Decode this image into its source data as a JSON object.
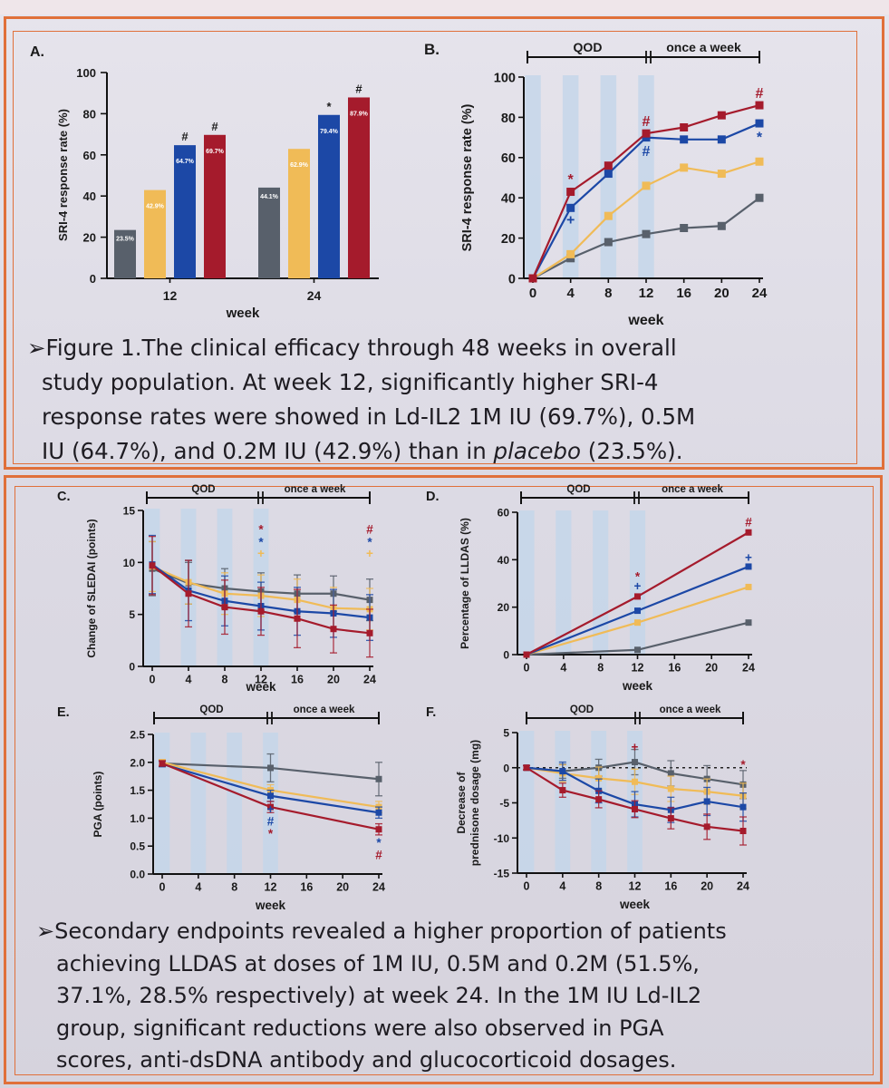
{
  "colors": {
    "placebo": "#58606b",
    "dose_0_2M": "#f0bb57",
    "dose_0_5M": "#1c48a6",
    "dose_1M": "#a51b2c",
    "stripe": "#c3d6ea",
    "frame": "#e0703a"
  },
  "charts": {
    "A": {
      "label": "A.",
      "ylabel": "SRI-4 response rate (%)",
      "xlabel": "week",
      "yticks": [
        "0",
        "20",
        "40",
        "60",
        "80",
        "100"
      ],
      "groups": [
        "12",
        "24"
      ]
    },
    "B": {
      "label": "B.",
      "ylabel": "SRI-4 response rate (%)",
      "xlabel": "week",
      "xticks": [
        "0",
        "4",
        "8",
        "12",
        "16",
        "20",
        "24"
      ],
      "yticks": [
        "0",
        "20",
        "40",
        "60",
        "80",
        "100"
      ],
      "period1": "QOD",
      "period2": "once a week"
    },
    "C": {
      "label": "C.",
      "ylabel": "Change of SLEDAI (points)",
      "xlabel": "week",
      "xticks": [
        "0",
        "4",
        "8",
        "12",
        "16",
        "20",
        "24"
      ],
      "yticks": [
        "0",
        "5",
        "10",
        "15"
      ],
      "period1": "QOD",
      "period2": "once a week"
    },
    "D": {
      "label": "D.",
      "ylabel": "Percentage of LLDAS (%)",
      "xlabel": "week",
      "xticks": [
        "0",
        "4",
        "8",
        "12",
        "16",
        "20",
        "24"
      ],
      "yticks": [
        "0",
        "20",
        "40",
        "60"
      ],
      "period1": "QOD",
      "period2": "once a week"
    },
    "E": {
      "label": "E.",
      "ylabel": "PGA (points)",
      "xlabel": "week",
      "xticks": [
        "0",
        "4",
        "8",
        "12",
        "16",
        "20",
        "24"
      ],
      "yticks": [
        "0.0",
        "0.5",
        "1.0",
        "1.5",
        "2.0",
        "2.5"
      ],
      "period1": "QOD",
      "period2": "once a week"
    },
    "F": {
      "label": "F.",
      "ylabel1": "Decrease of",
      "ylabel2": "prednisone dosage (mg)",
      "xlabel": "week",
      "xticks": [
        "0",
        "4",
        "8",
        "12",
        "16",
        "20",
        "24"
      ],
      "yticks": [
        "-15",
        "-10",
        "-5",
        "0",
        "5"
      ],
      "period1": "QOD",
      "period2": "once a week"
    }
  },
  "chart_data": [
    {
      "id": "A",
      "type": "bar",
      "title": "",
      "xlabel": "week",
      "ylabel": "SRI-4 response rate (%)",
      "ylim": [
        0,
        100
      ],
      "categories": [
        "12",
        "24"
      ],
      "series": [
        {
          "name": "placebo",
          "color": "#58606b",
          "values": [
            23.5,
            44.1
          ],
          "labels": [
            "23.5%",
            "44.1%"
          ],
          "marks": [
            "",
            ""
          ]
        },
        {
          "name": "0.2M IU",
          "color": "#f0bb57",
          "values": [
            42.9,
            62.9
          ],
          "labels": [
            "42.9%",
            "62.9%"
          ],
          "marks": [
            "",
            ""
          ]
        },
        {
          "name": "0.5M IU",
          "color": "#1c48a6",
          "values": [
            64.7,
            79.4
          ],
          "labels": [
            "64.7%",
            "79.4%"
          ],
          "marks": [
            "#",
            "*"
          ]
        },
        {
          "name": "1M IU",
          "color": "#a51b2c",
          "values": [
            69.7,
            87.9
          ],
          "labels": [
            "69.7%",
            "87.9%"
          ],
          "marks": [
            "#",
            "#"
          ]
        }
      ]
    },
    {
      "id": "B",
      "type": "line",
      "xlabel": "week",
      "ylabel": "SRI-4 response rate (%)",
      "xlim": [
        0,
        24
      ],
      "ylim": [
        0,
        100
      ],
      "x": [
        0,
        4,
        8,
        12,
        16,
        20,
        24
      ],
      "series": [
        {
          "name": "placebo",
          "color": "#58606b",
          "values": [
            0,
            10,
            18,
            22,
            25,
            26,
            40
          ]
        },
        {
          "name": "0.2M IU",
          "color": "#f0bb57",
          "values": [
            0,
            12,
            31,
            46,
            55,
            52,
            58
          ]
        },
        {
          "name": "0.5M IU",
          "color": "#1c48a6",
          "values": [
            0,
            35,
            52,
            70,
            69,
            69,
            77
          ]
        },
        {
          "name": "1M IU",
          "color": "#a51b2c",
          "values": [
            0,
            43,
            56,
            72,
            75,
            81,
            86
          ]
        }
      ],
      "annotations": [
        {
          "x": 4,
          "y": 49,
          "text": "*",
          "color": "#a51b2c"
        },
        {
          "x": 4,
          "y": 29,
          "text": "+",
          "color": "#1c48a6"
        },
        {
          "x": 12,
          "y": 78,
          "text": "#",
          "color": "#a51b2c"
        },
        {
          "x": 12,
          "y": 63,
          "text": "#",
          "color": "#1c48a6"
        },
        {
          "x": 24,
          "y": 92,
          "text": "#",
          "color": "#a51b2c"
        },
        {
          "x": 24,
          "y": 70,
          "text": "*",
          "color": "#1c48a6"
        }
      ]
    },
    {
      "id": "C",
      "type": "line",
      "xlabel": "week",
      "ylabel": "Change of SLEDAI (points)",
      "xlim": [
        0,
        24
      ],
      "ylim": [
        0,
        15
      ],
      "x": [
        0,
        4,
        8,
        12,
        16,
        20,
        24
      ],
      "series": [
        {
          "name": "placebo",
          "color": "#58606b",
          "values": [
            9.4,
            8.0,
            7.5,
            7.2,
            7.0,
            7.0,
            6.4
          ],
          "errors": [
            2.6,
            2.0,
            1.9,
            1.8,
            1.8,
            1.7,
            2.0
          ]
        },
        {
          "name": "0.2M IU",
          "color": "#f0bb57",
          "values": [
            9.6,
            8.1,
            7.0,
            6.8,
            6.4,
            5.6,
            5.5
          ],
          "errors": [
            2.4,
            2.1,
            2.0,
            2.0,
            2.0,
            2.0,
            2.0
          ]
        },
        {
          "name": "0.5M IU",
          "color": "#1c48a6",
          "values": [
            9.8,
            7.3,
            6.3,
            5.8,
            5.3,
            5.1,
            4.7
          ],
          "errors": [
            2.8,
            2.9,
            2.4,
            2.3,
            2.3,
            2.3,
            2.2
          ]
        },
        {
          "name": "1M IU",
          "color": "#a51b2c",
          "values": [
            9.7,
            7.0,
            5.7,
            5.3,
            4.6,
            3.6,
            3.2
          ],
          "errors": [
            2.8,
            3.2,
            2.6,
            2.3,
            2.8,
            2.3,
            2.3
          ]
        }
      ],
      "annotations": [
        {
          "x": 12,
          "y": 13.2,
          "text": "*",
          "color": "#a51b2c"
        },
        {
          "x": 12,
          "y": 12.0,
          "text": "*",
          "color": "#1c48a6"
        },
        {
          "x": 12,
          "y": 10.9,
          "text": "+",
          "color": "#f0bb57"
        },
        {
          "x": 24,
          "y": 13.2,
          "text": "#",
          "color": "#a51b2c"
        },
        {
          "x": 24,
          "y": 12.0,
          "text": "*",
          "color": "#1c48a6"
        },
        {
          "x": 24,
          "y": 10.9,
          "text": "+",
          "color": "#f0bb57"
        }
      ]
    },
    {
      "id": "D",
      "type": "line",
      "xlabel": "week",
      "ylabel": "Percentage of LLDAS (%)",
      "xlim": [
        0,
        24
      ],
      "ylim": [
        0,
        60
      ],
      "x": [
        0,
        12,
        24
      ],
      "series": [
        {
          "name": "placebo",
          "color": "#58606b",
          "values": [
            0,
            2,
            13.5
          ]
        },
        {
          "name": "0.2M IU",
          "color": "#f0bb57",
          "values": [
            0,
            13.5,
            28.5
          ]
        },
        {
          "name": "0.5M IU",
          "color": "#1c48a6",
          "values": [
            0,
            18.5,
            37.1
          ]
        },
        {
          "name": "1M IU",
          "color": "#a51b2c",
          "values": [
            0,
            24.5,
            51.5
          ]
        }
      ],
      "annotations": [
        {
          "x": 12,
          "y": 33,
          "text": "*",
          "color": "#a51b2c"
        },
        {
          "x": 12,
          "y": 29,
          "text": "+",
          "color": "#1c48a6"
        },
        {
          "x": 24,
          "y": 56,
          "text": "#",
          "color": "#a51b2c"
        },
        {
          "x": 24,
          "y": 41,
          "text": "+",
          "color": "#1c48a6"
        }
      ]
    },
    {
      "id": "E",
      "type": "line",
      "xlabel": "week",
      "ylabel": "PGA (points)",
      "xlim": [
        0,
        24
      ],
      "ylim": [
        0,
        2.5
      ],
      "x": [
        0,
        12,
        24
      ],
      "series": [
        {
          "name": "placebo",
          "color": "#58606b",
          "values": [
            1.98,
            1.9,
            1.7
          ],
          "errors": [
            0.05,
            0.25,
            0.3
          ]
        },
        {
          "name": "0.2M IU",
          "color": "#f0bb57",
          "values": [
            2.0,
            1.5,
            1.2
          ],
          "errors": [
            0.05,
            0.1,
            0.1
          ]
        },
        {
          "name": "0.5M IU",
          "color": "#1c48a6",
          "values": [
            1.97,
            1.4,
            1.1
          ],
          "errors": [
            0.05,
            0.1,
            0.1
          ]
        },
        {
          "name": "1M IU",
          "color": "#a51b2c",
          "values": [
            1.98,
            1.2,
            0.8
          ],
          "errors": [
            0.05,
            0.1,
            0.1
          ]
        }
      ],
      "annotations": [
        {
          "x": 12,
          "y": 1.17,
          "text": "+",
          "color": "#1c48a6"
        },
        {
          "x": 12,
          "y": 0.95,
          "text": "#",
          "color": "#1c48a6"
        },
        {
          "x": 12,
          "y": 0.73,
          "text": "*",
          "color": "#a51b2c"
        },
        {
          "x": 24,
          "y": 0.57,
          "text": "*",
          "color": "#1c48a6"
        },
        {
          "x": 24,
          "y": 0.35,
          "text": "#",
          "color": "#a51b2c"
        }
      ]
    },
    {
      "id": "F",
      "type": "line",
      "xlabel": "week",
      "ylabel": "Decrease of prednisone dosage (mg)",
      "xlim": [
        0,
        24
      ],
      "ylim": [
        -15,
        5
      ],
      "x": [
        0,
        4,
        8,
        12,
        16,
        20,
        24
      ],
      "series": [
        {
          "name": "placebo",
          "color": "#58606b",
          "values": [
            0,
            -0.5,
            0,
            0.8,
            -0.8,
            -1.6,
            -2.4
          ],
          "errors": [
            0.3,
            1.0,
            1.2,
            1.8,
            1.8,
            1.9,
            2.0
          ]
        },
        {
          "name": "0.2M IU",
          "color": "#f0bb57",
          "values": [
            0,
            -0.8,
            -1.5,
            -2.0,
            -3.0,
            -3.4,
            -4.0
          ],
          "errors": [
            0.3,
            1.2,
            1.6,
            1.8,
            1.8,
            1.8,
            1.8
          ]
        },
        {
          "name": "0.5M IU",
          "color": "#1c48a6",
          "values": [
            0,
            -0.5,
            -3.3,
            -5.2,
            -6.0,
            -4.8,
            -5.6
          ],
          "errors": [
            0.3,
            1.3,
            1.7,
            1.8,
            1.8,
            2.0,
            2.0
          ]
        },
        {
          "name": "1M IU",
          "color": "#a51b2c",
          "values": [
            0,
            -3.2,
            -4.5,
            -5.9,
            -7.2,
            -8.4,
            -9.0
          ],
          "errors": [
            0.3,
            1.0,
            1.2,
            1.2,
            1.5,
            1.8,
            2.0
          ]
        }
      ],
      "annotations": [
        {
          "x": 12,
          "y": 3.0,
          "text": "+",
          "color": "#a51b2c"
        },
        {
          "x": 24,
          "y": 0.5,
          "text": "*",
          "color": "#a51b2c"
        }
      ]
    }
  ],
  "caption1": {
    "line1": "➢Figure 1.The clinical efficacy through 48 weeks in overall",
    "line2": "study population. At week 12, significantly higher SRI-4",
    "line3": "response rates were showed in Ld-IL2 1M IU (69.7%), 0.5M",
    "line4a": "IU (64.7%), and 0.2M IU (42.9%) than in ",
    "line4b": "placebo",
    "line4c": " (23.5%)."
  },
  "caption2": {
    "line1": "➢Secondary endpoints revealed a higher proportion of patients",
    "line2": "achieving LLDAS at doses of 1M IU, 0.5M and 0.2M (51.5%,",
    "line3": "37.1%, 28.5% respectively) at week 24. In the 1M IU Ld-IL2",
    "line4": "group, significant reductions were also observed in PGA",
    "line5": "scores, anti-dsDNA antibody and glucocorticoid dosages."
  }
}
